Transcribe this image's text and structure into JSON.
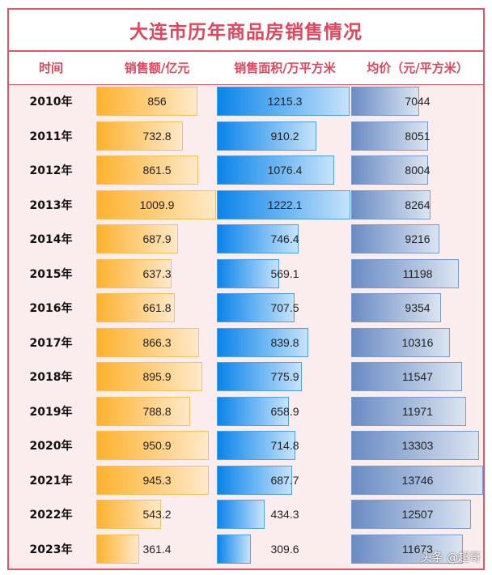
{
  "chart_data": {
    "type": "table",
    "title": "大连市历年商品房销售情况",
    "columns": [
      "时间",
      "销售额/亿元",
      "销售面积/万平方米",
      "均价（元/平方米）"
    ],
    "rows": [
      {
        "year": "2010年",
        "sales": "856",
        "area": "1215.3",
        "price": "7044"
      },
      {
        "year": "2011年",
        "sales": "732.8",
        "area": "910.2",
        "price": "8051"
      },
      {
        "year": "2012年",
        "sales": "861.5",
        "area": "1076.4",
        "price": "8004"
      },
      {
        "year": "2013年",
        "sales": "1009.9",
        "area": "1222.1",
        "price": "8264"
      },
      {
        "year": "2014年",
        "sales": "687.9",
        "area": "746.4",
        "price": "9216"
      },
      {
        "year": "2015年",
        "sales": "637.3",
        "area": "569.1",
        "price": "11198"
      },
      {
        "year": "2016年",
        "sales": "661.8",
        "area": "707.5",
        "price": "9354"
      },
      {
        "year": "2017年",
        "sales": "866.3",
        "area": "839.8",
        "price": "10316"
      },
      {
        "year": "2018年",
        "sales": "895.9",
        "area": "775.9",
        "price": "11547"
      },
      {
        "year": "2019年",
        "sales": "788.8",
        "area": "658.9",
        "price": "11971"
      },
      {
        "year": "2020年",
        "sales": "950.9",
        "area": "714.8",
        "price": "13303"
      },
      {
        "year": "2021年",
        "sales": "945.3",
        "area": "687.7",
        "price": "13746"
      },
      {
        "year": "2022年",
        "sales": "543.2",
        "area": "434.3",
        "price": "12507"
      },
      {
        "year": "2023年",
        "sales": "361.4",
        "area": "309.6",
        "price": "11673"
      }
    ],
    "bar_colors": {
      "sales": "#fdb22e",
      "area": "#0a84ea",
      "price": "#6a8cc4"
    },
    "accent": "#e0465c"
  },
  "watermark": "头条 @超哥"
}
